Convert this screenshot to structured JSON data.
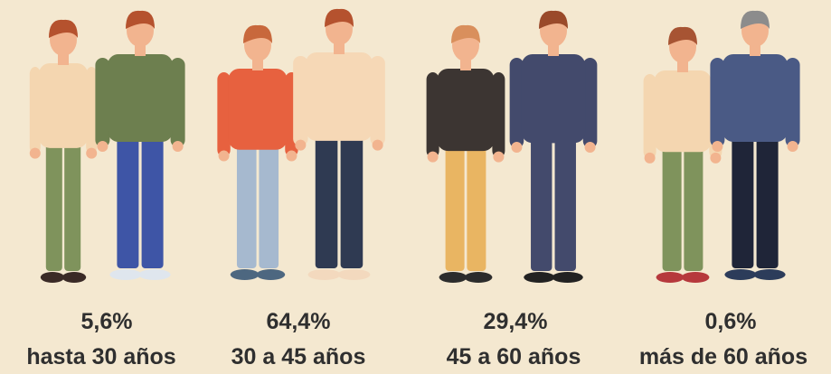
{
  "groups": [
    {
      "value": "5,6%",
      "label": "hasta 30 años"
    },
    {
      "value": "64,4%",
      "label": "30 a 45 años"
    },
    {
      "value": "29,4%",
      "label": "45 a 60 años"
    },
    {
      "value": "0,6%",
      "label": "más de 60 años"
    }
  ]
}
